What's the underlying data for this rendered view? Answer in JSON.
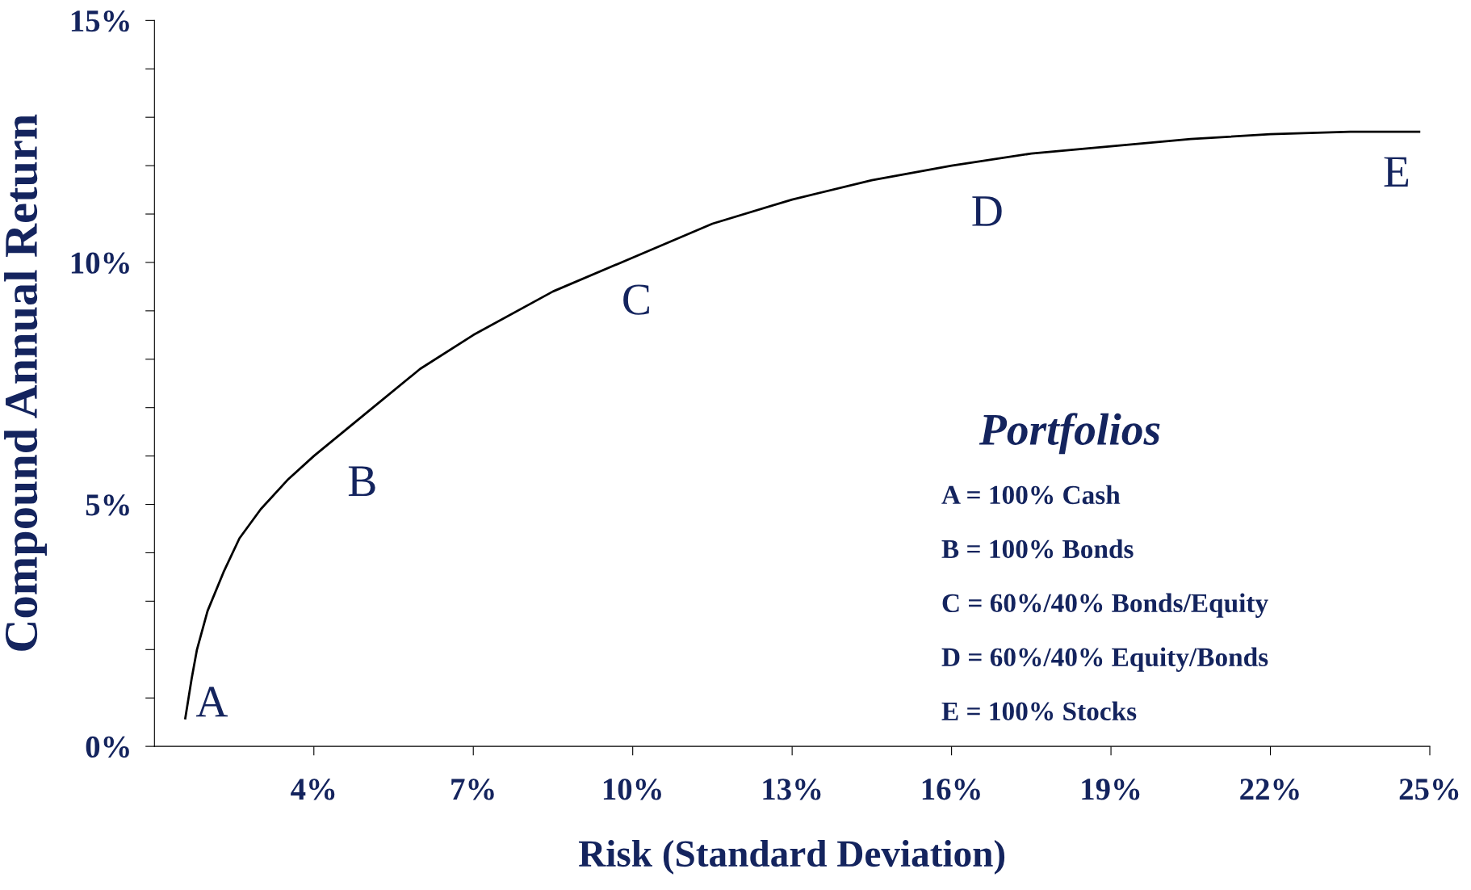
{
  "chart_data": {
    "type": "line",
    "xlabel": "Risk (Standard Deviation)",
    "ylabel": "Compound Annual Return",
    "xlim": [
      1,
      25
    ],
    "ylim": [
      0,
      15
    ],
    "xticks": [
      {
        "value": 4,
        "label": "4%"
      },
      {
        "value": 7,
        "label": "7%"
      },
      {
        "value": 10,
        "label": "10%"
      },
      {
        "value": 13,
        "label": "13%"
      },
      {
        "value": 16,
        "label": "16%"
      },
      {
        "value": 19,
        "label": "19%"
      },
      {
        "value": 22,
        "label": "22%"
      },
      {
        "value": 25,
        "label": "25%"
      }
    ],
    "yticks": [
      {
        "value": 0,
        "label": "0%"
      },
      {
        "value": 1,
        "label": null
      },
      {
        "value": 2,
        "label": null
      },
      {
        "value": 3,
        "label": null
      },
      {
        "value": 4,
        "label": null
      },
      {
        "value": 5,
        "label": "5%"
      },
      {
        "value": 6,
        "label": null
      },
      {
        "value": 7,
        "label": null
      },
      {
        "value": 8,
        "label": null
      },
      {
        "value": 9,
        "label": null
      },
      {
        "value": 10,
        "label": "10%"
      },
      {
        "value": 11,
        "label": null
      },
      {
        "value": 12,
        "label": null
      },
      {
        "value": 13,
        "label": null
      },
      {
        "value": 14,
        "label": null
      },
      {
        "value": 15,
        "label": "15%"
      }
    ],
    "grid": false,
    "marker": "none",
    "line_style": "solid",
    "series": [
      {
        "color": "#000000",
        "x": [
          1.58,
          1.7,
          1.8,
          2.0,
          2.3,
          2.6,
          3.0,
          3.5,
          4.0,
          5.0,
          6.0,
          7.0,
          8.5,
          10.0,
          11.5,
          13.0,
          14.5,
          16.0,
          17.5,
          19.0,
          20.5,
          22.0,
          23.5,
          24.8
        ],
        "values": [
          0.58,
          1.4,
          2.0,
          2.8,
          3.6,
          4.3,
          4.9,
          5.5,
          6.0,
          6.9,
          7.8,
          8.5,
          9.4,
          10.1,
          10.8,
          11.3,
          11.7,
          12.0,
          12.25,
          12.4,
          12.55,
          12.65,
          12.7,
          12.7
        ]
      }
    ],
    "annotations": [
      "A",
      "B",
      "C",
      "D",
      "E",
      "Portfolios",
      "A = 100% Cash",
      "B = 100% Bonds",
      "C = 60%/40% Bonds/Equity",
      "D = 60%/40% Equity/Bonds",
      "E = 100% Stocks"
    ]
  }
}
